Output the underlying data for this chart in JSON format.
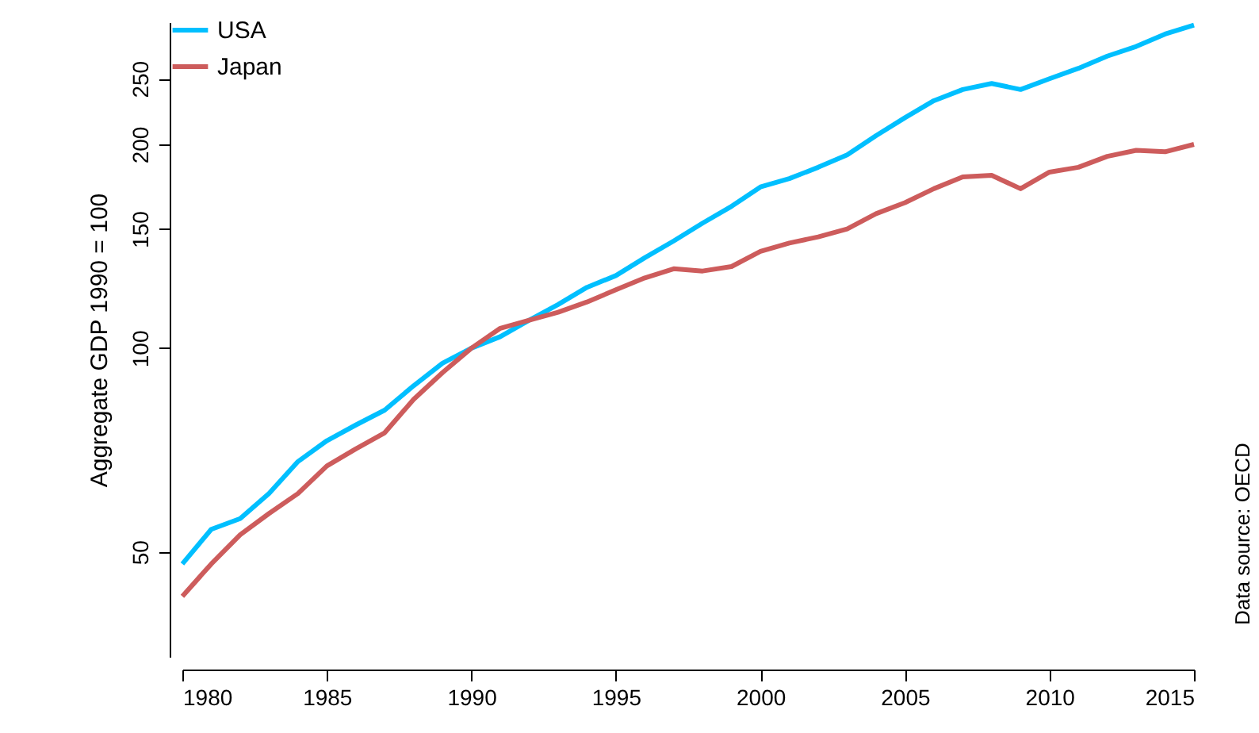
{
  "chart_data": {
    "type": "line",
    "ylabel": "Aggregate GDP 1990 = 100",
    "x": [
      1980,
      1981,
      1982,
      1983,
      1984,
      1985,
      1986,
      1987,
      1988,
      1989,
      1990,
      1991,
      1992,
      1993,
      1994,
      1995,
      1996,
      1997,
      1998,
      1999,
      2000,
      2001,
      2002,
      2003,
      2004,
      2005,
      2006,
      2007,
      2008,
      2009,
      2010,
      2011,
      2012,
      2013,
      2014,
      2015
    ],
    "series": [
      {
        "name": "USA",
        "color": "#00bfff",
        "values": [
          48,
          54,
          56,
          61,
          68,
          73,
          77,
          81,
          88,
          95,
          100,
          104,
          110,
          116,
          123,
          128,
          136,
          144,
          153,
          162,
          173,
          178,
          185,
          193,
          206,
          219,
          232,
          241,
          246,
          241,
          250,
          259,
          270,
          279,
          291,
          300
        ]
      },
      {
        "name": "Japan",
        "color": "#cd5c5c",
        "values": [
          43,
          48,
          53,
          57,
          61,
          67,
          71,
          75,
          84,
          92,
          100,
          107,
          110,
          113,
          117,
          122,
          127,
          131,
          130,
          132,
          139,
          143,
          146,
          150,
          158,
          164,
          172,
          179,
          180,
          172,
          182,
          185,
          192,
          196,
          195,
          200
        ]
      }
    ],
    "xlim": [
      1980,
      2015
    ],
    "xticks": [
      1980,
      1985,
      1990,
      1995,
      2000,
      2005,
      2010,
      2015
    ],
    "ylim": [
      35,
      303
    ],
    "yticks": [
      50,
      100,
      150,
      200,
      250
    ],
    "log": "y",
    "grid": false,
    "legend": "top left",
    "annotations": [
      "Data source: OECD"
    ]
  }
}
